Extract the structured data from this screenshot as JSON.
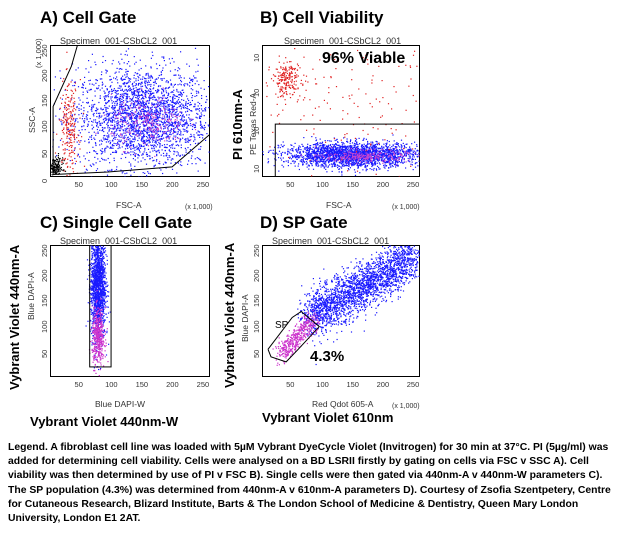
{
  "panels": {
    "A": {
      "title": "A) Cell Gate",
      "specimen": "Specimen_001-CSbCL2_001",
      "ylabel_small": "SSC-A",
      "xlabel_small": "FSC-A",
      "y_unit": "(x 1,000)",
      "x_unit": "(x 1,000)",
      "yticks": [
        "0",
        "50",
        "100",
        "150",
        "200",
        "250"
      ],
      "xticks": [
        "50",
        "100",
        "150",
        "200",
        "250"
      ]
    },
    "B": {
      "title": "B) Cell Viability",
      "specimen": "Specimen_001-CSbCL2_001",
      "ylabel_big": "PI 610nm-A",
      "ylabel_small": "PE Texas Red-A",
      "xlabel_small": "FSC-A",
      "x_unit": "(x 1,000)",
      "annotation": "96% Viable",
      "yticks": [
        "10",
        "10",
        "10",
        "10"
      ],
      "xticks": [
        "50",
        "100",
        "150",
        "200",
        "250"
      ]
    },
    "C": {
      "title": "C) Single Cell Gate",
      "specimen": "Specimen_001-CSbCL2_001",
      "ylabel_big": "Vybrant Violet 440nm-A",
      "ylabel_small": "Blue DAPI-A",
      "xlabel_small": "Blue DAPI-W",
      "xlabel_big": "Vybrant Violet 440nm-W",
      "yticks": [
        "50",
        "100",
        "150",
        "200",
        "250"
      ],
      "xticks": [
        "50",
        "100",
        "150",
        "200",
        "250"
      ]
    },
    "D": {
      "title": "D) SP Gate",
      "specimen": "Specimen_001-CSbCL2_001",
      "ylabel_big": "Vybrant Violet 440nm-A",
      "ylabel_small": "Blue DAPI-A",
      "xlabel_small": "Red Qdot 605-A",
      "xlabel_big": "Vybrant Violet 610nm",
      "x_unit": "(x 1,000)",
      "gate_label": "SP",
      "annotation": "4.3%",
      "yticks": [
        "50",
        "100",
        "150",
        "200",
        "250"
      ],
      "xticks": [
        "50",
        "100",
        "150",
        "200",
        "250"
      ]
    }
  },
  "legend": "Legend. A fibroblast cell line was loaded with 5µM Vybrant DyeCycle Violet (Invitrogen) for 30 min at 37°C. PI (5µg/ml) was added for determining cell viability. Cells were analysed on a BD LSRII firstly by gating on cells via FSC v SSC A). Cell viability was then determined by use of PI v FSC B). Single cells were then gated via 440nm-A v 440nm-W parameters C). The SP population (4.3%) was determined from 440nm-A v 610nm-A parameters D). Courtesy of Zsofia Szentpetery, Centre for Cutaneous Research, Blizard Institute, Barts & The London School of Medicine & Dentistry, Queen Mary London University, London E1 2AT.",
  "chart_data": [
    {
      "type": "scatter",
      "panel": "A",
      "title": "A) Cell Gate",
      "xlabel": "FSC-A",
      "ylabel": "SSC-A",
      "xlim": [
        0,
        262
      ],
      "ylim": [
        0,
        262
      ],
      "populations": [
        {
          "name": "",
          "color": "#1a1aff",
          "center": [
            150,
            120
          ],
          "spread": [
            55,
            50
          ],
          "count": 2600
        },
        {
          "name": "",
          "color": "#cc44cc",
          "center": [
            160,
            110
          ],
          "spread": [
            30,
            25
          ],
          "count": 250
        },
        {
          "name": "",
          "color": "#e02020",
          "center": [
            30,
            100
          ],
          "spread": [
            8,
            45
          ],
          "count": 220
        },
        {
          "name": "",
          "color": "#000000",
          "center": [
            8,
            20
          ],
          "spread": [
            6,
            10
          ],
          "count": 150
        }
      ],
      "gate_polygon": [
        [
          5,
          5
        ],
        [
          5,
          140
        ],
        [
          35,
          220
        ],
        [
          45,
          262
        ],
        [
          262,
          262
        ],
        [
          262,
          85
        ],
        [
          200,
          20
        ],
        [
          95,
          10
        ],
        [
          5,
          5
        ]
      ]
    },
    {
      "type": "scatter",
      "panel": "B",
      "title": "B) Cell Viability",
      "xlabel": "FSC-A",
      "ylabel": "PI 610nm-A",
      "xlim": [
        0,
        262
      ],
      "ylim": [
        0,
        262
      ],
      "populations": [
        {
          "name": "",
          "color": "#1a1aff",
          "center": [
            150,
            45
          ],
          "spread": [
            55,
            12
          ],
          "count": 2400
        },
        {
          "name": "",
          "color": "#cc44cc",
          "center": [
            170,
            42
          ],
          "spread": [
            35,
            6
          ],
          "count": 250
        },
        {
          "name": "",
          "color": "#e02020",
          "center": [
            40,
            195
          ],
          "spread": [
            12,
            18
          ],
          "count": 200
        },
        {
          "name": "",
          "color": "#e02020",
          "center": [
            130,
            150
          ],
          "spread": [
            90,
            70
          ],
          "count": 180
        }
      ],
      "gate_rect": [
        [
          22,
          0
        ],
        [
          262,
          105
        ]
      ],
      "annotation": "96% Viable"
    },
    {
      "type": "scatter",
      "panel": "C",
      "title": "C) Single Cell Gate",
      "xlabel": "Vybrant Violet 440nm-W",
      "ylabel": "Vybrant Violet 440nm-A",
      "xlim": [
        0,
        262
      ],
      "ylim": [
        0,
        262
      ],
      "populations": [
        {
          "name": "",
          "color": "#1a1aff",
          "center": [
            78,
            185
          ],
          "spread": [
            6,
            55
          ],
          "count": 1600
        },
        {
          "name": "",
          "color": "#cc33cc",
          "center": [
            78,
            80
          ],
          "spread": [
            5,
            28
          ],
          "count": 450
        }
      ],
      "gate_rect": [
        [
          65,
          20
        ],
        [
          100,
          262
        ]
      ]
    },
    {
      "type": "scatter",
      "panel": "D",
      "title": "D) SP Gate",
      "xlabel": "Vybrant Violet 610nm",
      "ylabel": "Vybrant Violet 440nm-A",
      "xlim": [
        0,
        262
      ],
      "ylim": [
        0,
        262
      ],
      "populations": [
        {
          "name": "",
          "color": "#1a1aff",
          "trend": [
            [
              80,
              120
            ],
            [
              250,
              240
            ]
          ],
          "spread": 22,
          "count": 2400
        },
        {
          "name": "",
          "color": "#cc33cc",
          "trend": [
            [
              30,
              45
            ],
            [
              85,
              115
            ]
          ],
          "spread": 10,
          "count": 450
        }
      ],
      "gate_polygon": [
        [
          10,
          55
        ],
        [
          50,
          118
        ],
        [
          65,
          130
        ],
        [
          95,
          100
        ],
        [
          60,
          55
        ],
        [
          40,
          30
        ],
        [
          15,
          40
        ],
        [
          10,
          55
        ]
      ],
      "annotation": "4.3%"
    }
  ]
}
